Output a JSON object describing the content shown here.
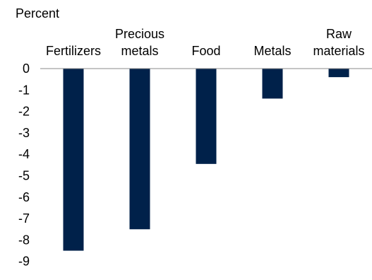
{
  "chart_data": {
    "type": "bar",
    "ylabel": "Percent",
    "categories": [
      [
        "Fertilizers"
      ],
      [
        "Precious",
        "metals"
      ],
      [
        "Food"
      ],
      [
        "Metals"
      ],
      [
        "Raw",
        "materials"
      ]
    ],
    "values": [
      -8.5,
      -7.5,
      -4.45,
      -1.4,
      -0.4
    ],
    "ylim": [
      -9,
      0
    ],
    "yticks": [
      "0",
      "-1",
      "-2",
      "-3",
      "-4",
      "-5",
      "-6",
      "-7",
      "-8",
      "-9"
    ],
    "bar_color": "#00214a",
    "grid": false,
    "legend": "none"
  }
}
